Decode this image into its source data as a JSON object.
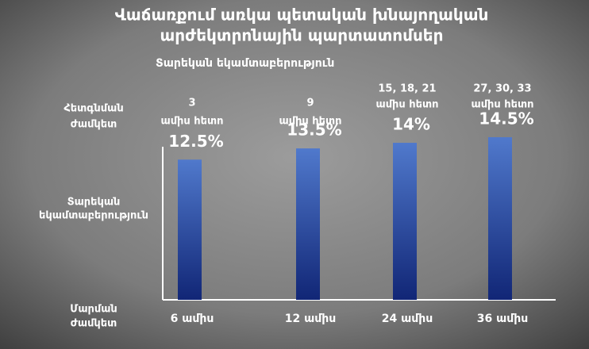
{
  "chart_data": {
    "type": "bar",
    "title": [
      "Վաճառքում առկա պետական խնայողական",
      "արժեկտրոնային պարտատոմսեր"
    ],
    "subtitle": "Տարեկան եկամտաբերություն",
    "row_labels": [
      [
        "Հետգնման",
        "ժամկետ"
      ],
      [
        "Տարեկան",
        "եկամտաբերություն"
      ],
      [
        "Մարման",
        "ժամկետ"
      ]
    ],
    "categories": [
      "6 ամիս",
      "12 ամիս",
      "24 ամիս",
      "36 ամիս"
    ],
    "redemption": [
      [
        "3",
        "ամիս հետո"
      ],
      [
        "9",
        "ամիս հետո"
      ],
      [
        "15, 18, 21",
        "ամիս հետո"
      ],
      [
        "27, 30, 33",
        "ամիս հետո"
      ]
    ],
    "values": [
      12.5,
      13.5,
      14,
      14.5
    ],
    "value_labels": [
      "12.5%",
      "13.5%",
      "14%",
      "14.5%"
    ],
    "colors": [
      "#5079cc",
      "#112676"
    ]
  }
}
